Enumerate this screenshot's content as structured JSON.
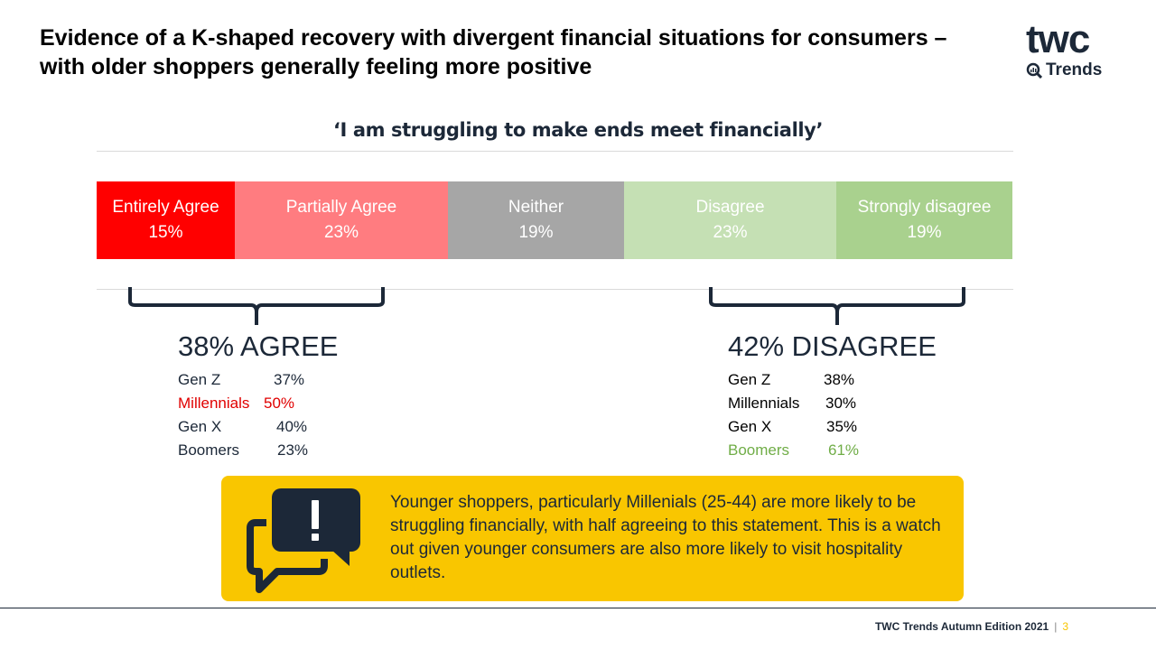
{
  "title": "Evidence of a K-shaped recovery with divergent financial situations for consumers – with older shoppers generally feeling more positive",
  "logo": {
    "text": "twc",
    "sub": "Trends"
  },
  "subtitle": "‘I am struggling to make ends meet financially’",
  "segments": [
    {
      "label": "Entirely Agree",
      "value": "15%",
      "color": "#ff0000"
    },
    {
      "label": "Partially Agree",
      "value": "23%",
      "color": "#ff7c80"
    },
    {
      "label": "Neither",
      "value": "19%",
      "color": "#a6a6a6"
    },
    {
      "label": "Disagree",
      "value": "23%",
      "color": "#c5e0b4"
    },
    {
      "label": "Strongly disagree",
      "value": "19%",
      "color": "#a9d18e"
    }
  ],
  "agree": {
    "headline": "38% AGREE",
    "rows": [
      {
        "gen": "Gen Z",
        "value": "37%"
      },
      {
        "gen": "Millennials",
        "value": "50%",
        "highlight": "#e00000"
      },
      {
        "gen": "Gen X",
        "value": "40%"
      },
      {
        "gen": "Boomers",
        "value": "23%"
      }
    ]
  },
  "disagree": {
    "headline": "42% DISAGREE",
    "rows": [
      {
        "gen": "Gen Z",
        "value": "38%"
      },
      {
        "gen": "Millennials",
        "value": "30%"
      },
      {
        "gen": "Gen X",
        "value": "35%"
      },
      {
        "gen": "Boomers",
        "value": "61%",
        "highlight": "#70ad47"
      }
    ]
  },
  "callout": "Younger shoppers, particularly Millenials (25-44) are more likely to be struggling financially, with half agreeing to this statement. This is a watch out given younger consumers are also more likely to visit hospitality outlets.",
  "footer": {
    "text": "TWC Trends Autumn Edition 2021",
    "page": "3"
  }
}
